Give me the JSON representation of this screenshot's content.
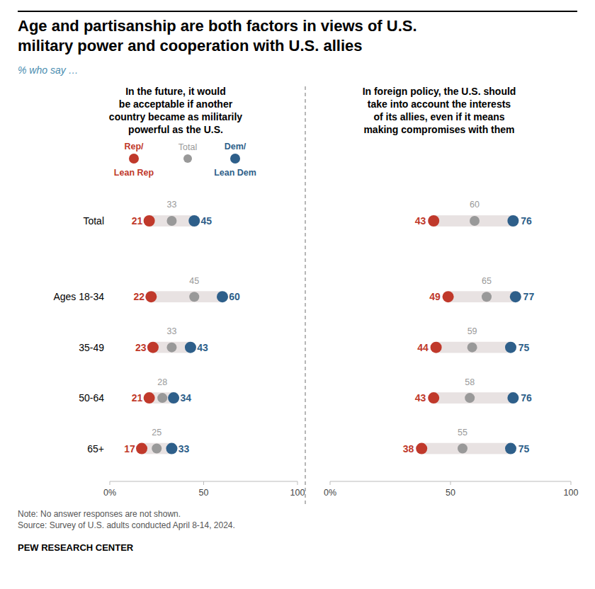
{
  "chart_data": {
    "type": "dumbbell",
    "title": "Age and partisanship are both factors in views of U.S.\nmilitary power and cooperation with U.S. allies",
    "subtitle": "% who say …",
    "orientation": "horizontal",
    "data_labels": true,
    "grid": false,
    "legend": "top",
    "categories": [
      "Total",
      "Ages 18-34",
      "35-49",
      "50-64",
      "65+"
    ],
    "series": [
      {
        "name": "Rep/\nLean Rep",
        "color": "#C0392B"
      },
      {
        "name": "Total",
        "color": "#999999"
      },
      {
        "name": "Dem/\nLean Dem",
        "color": "#2E5F8A"
      }
    ],
    "panels": [
      {
        "title": "In the future, it would\nbe acceptable if another\ncountry became as militarily\npowerful as the U.S.",
        "xlim": [
          0,
          100
        ],
        "xticks": [
          {
            "value": 0,
            "label": "0%"
          },
          50,
          100
        ],
        "values": [
          [
            21,
            22,
            23,
            21,
            17
          ],
          [
            33,
            45,
            33,
            28,
            25
          ],
          [
            45,
            60,
            43,
            34,
            33
          ]
        ]
      },
      {
        "title": "In foreign policy, the U.S. should\ntake into account the interests\nof its allies, even if it means\nmaking compromises with them",
        "xlim": [
          0,
          100
        ],
        "xticks": [
          {
            "value": 0,
            "label": "0%"
          },
          50,
          100
        ],
        "values": [
          [
            43,
            49,
            44,
            43,
            38
          ],
          [
            60,
            65,
            59,
            58,
            55
          ],
          [
            76,
            77,
            75,
            76,
            75
          ]
        ]
      }
    ],
    "notes": [
      "Note: No answer responses are not shown.",
      "Source: Survey of U.S. adults conducted April 8-14, 2024."
    ],
    "source": "PEW RESEARCH CENTER"
  }
}
